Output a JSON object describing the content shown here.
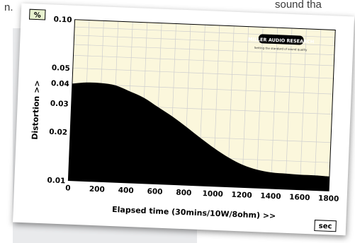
{
  "page_fragments": {
    "left": "n.",
    "right": "sound tha"
  },
  "chart_data": {
    "type": "area",
    "title": "",
    "xlabel": "Elapsed time (30mins/10W/8ohm) >>",
    "ylabel": "Distortion >>",
    "y_unit": "%",
    "x_unit": "sec",
    "xlim": [
      0,
      1800
    ],
    "ylim": [
      0.01,
      0.1
    ],
    "yscale": "log",
    "grid": true,
    "x_ticks": [
      "0",
      "200",
      "400",
      "600",
      "800",
      "1000",
      "1200",
      "1400",
      "1600",
      "1800"
    ],
    "y_ticks": [
      {
        "value": 0.1,
        "label": "0.10"
      },
      {
        "value": 0.05,
        "label": "0.05"
      },
      {
        "value": 0.04,
        "label": "0.04"
      },
      {
        "value": 0.03,
        "label": "0.03"
      },
      {
        "value": 0.02,
        "label": "0.02"
      },
      {
        "value": 0.01,
        "label": "0.01"
      }
    ],
    "series": [
      {
        "x": [
          0,
          100,
          200,
          300,
          400,
          500,
          600,
          700,
          800,
          900,
          1000,
          1100,
          1200,
          1300,
          1400,
          1500,
          1600,
          1700,
          1800
        ],
        "y": [
          0.04,
          0.041,
          0.041,
          0.04,
          0.037,
          0.034,
          0.03,
          0.0265,
          0.023,
          0.0198,
          0.0172,
          0.0152,
          0.0138,
          0.013,
          0.0126,
          0.0125,
          0.0124,
          0.0124,
          0.0123
        ]
      }
    ],
    "colors": {
      "plot_bg": "#fbf7dc",
      "fill": "#000000",
      "grid": "#cfcfcf",
      "unit_box": "#e8f2cf"
    },
    "logo": {
      "brand": "MILLER AUDIO RESEARCH",
      "tagline": "Setting the standard of sound quality"
    }
  }
}
